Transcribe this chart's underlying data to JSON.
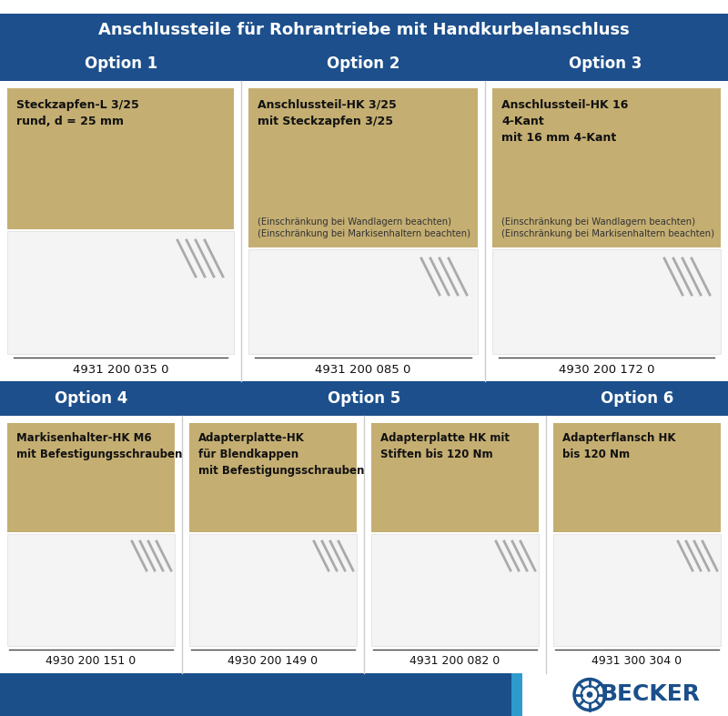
{
  "title": "Anschlussteile für Rohrantriebe mit Handkurbelanschluss",
  "title_bg": "#1c4f8c",
  "title_color": "#ffffff",
  "header_bg": "#1c4f8c",
  "option_color": "#ffffff",
  "card_bg": "#c4ae72",
  "white_bg": "#ffffff",
  "light_gray": "#f2f2f2",
  "bottom_dark": "#1a4f8a",
  "bottom_light": "#3399cc",
  "becker_color": "#1a4f8a",
  "separator_color": "#bbbbbb",
  "row1_titles": [
    "Steckzapfen-L 3/25\nrund, d = 25 mm",
    "Anschlussteil-HK 3/25\nmit Steckzapfen 3/25",
    "Anschlussteil-HK 16\n4-Kant\nmit 16 mm 4-Kant"
  ],
  "row1_subtitles": [
    "",
    "(Einschränkung bei Wandlagern beachten)\n(Einschränkung bei Markisenhaltern beachten)",
    "(Einschränkung bei Wandlagern beachten)\n(Einschränkung bei Markisenhaltern beachten)"
  ],
  "row1_options": [
    "Option 1",
    "Option 2",
    "Option 3"
  ],
  "row1_codes": [
    "4931 200 035 0",
    "4931 200 085 0",
    "4930 200 172 0"
  ],
  "row2_options": [
    "Option 4",
    "Option 5",
    "Option 6"
  ],
  "row2_titles": [
    "Markisenhalter-HK M6\nmit Befestigungsschrauben",
    "Adapterplatte-HK\nfür Blendkappen\nmit Befestigungsschrauben",
    "Adapterplatte HK mit\nStiften bis 120 Nm",
    "Adapterflansch HK\nbis 120 Nm"
  ],
  "row2_codes": [
    "4930 200 151 0",
    "4930 200 149 0",
    "4931 200 082 0",
    "4931 300 304 0"
  ],
  "row2_card_colors": [
    "#c4ae72",
    "#c4ae72",
    "#c4ae72",
    "#c4ae72"
  ]
}
